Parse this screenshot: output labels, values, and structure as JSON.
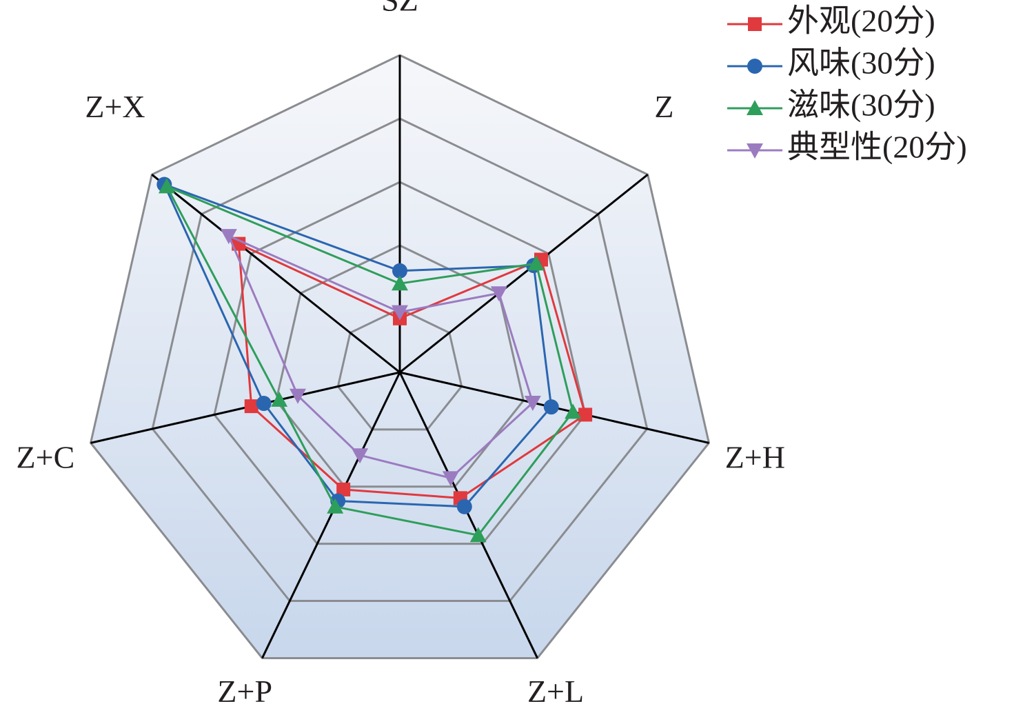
{
  "chart_data": {
    "type": "radar",
    "categories": [
      "SZ",
      "Z",
      "Z+H",
      "Z+L",
      "Z+P",
      "Z+C",
      "Z+X"
    ],
    "ylim": [
      0,
      10
    ],
    "yticks": [
      0,
      2,
      4,
      6,
      8,
      10
    ],
    "grid": true,
    "legend": "upper right",
    "series": [
      {
        "name": "外观(20分)",
        "color": "#e0393e",
        "marker": "square",
        "values": [
          1.7,
          5.7,
          6.0,
          4.4,
          4.1,
          4.8,
          6.5
        ]
      },
      {
        "name": "风味(30分)",
        "color": "#2a66b0",
        "marker": "circle",
        "values": [
          3.2,
          5.4,
          4.9,
          4.7,
          4.5,
          4.4,
          9.5
        ]
      },
      {
        "name": "滋味(30分)",
        "color": "#2e9e5b",
        "marker": "triangle",
        "values": [
          2.8,
          5.5,
          5.6,
          5.7,
          4.7,
          3.9,
          9.4
        ]
      },
      {
        "name": "典型性(20分)",
        "color": "#9b7bc0",
        "marker": "triangle-down",
        "values": [
          1.9,
          4.0,
          4.3,
          3.7,
          2.9,
          3.3,
          6.9
        ]
      }
    ]
  }
}
